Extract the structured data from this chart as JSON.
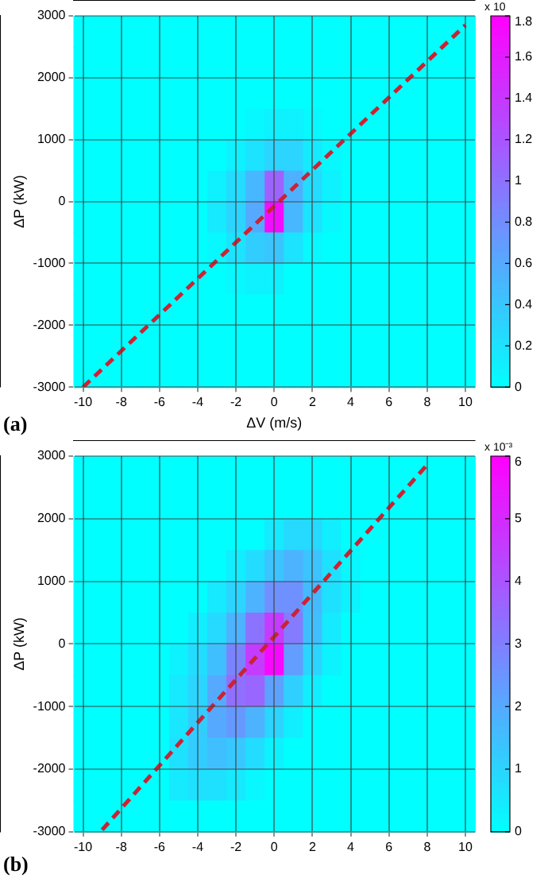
{
  "chart_data": [
    {
      "type": "heatmap",
      "xlabel": "ΔV (m/s)",
      "ylabel": "ΔP (kW)",
      "clabel": "x 10",
      "annotations": [
        "(a)"
      ],
      "grid": true,
      "legend": false,
      "categories": [
        "-10",
        null,
        "-8",
        null,
        "-6",
        null,
        "-4",
        null,
        "-2",
        null,
        "0",
        null,
        "2",
        null,
        "4",
        null,
        "6",
        null,
        "8",
        null,
        "10"
      ],
      "ylim": [
        -3000,
        3000
      ],
      "yticks": [
        -3000,
        -2000,
        -1000,
        0,
        1000,
        2000,
        3000
      ],
      "clim": [
        0,
        1.8
      ],
      "cticks": [
        0,
        0.2,
        0.4,
        0.6,
        0.8,
        1,
        1.2,
        1.4,
        1.6,
        1.8
      ],
      "cells": [
        [
          0,
          0,
          0,
          0,
          0,
          0,
          0,
          0,
          0,
          0,
          0,
          0,
          0,
          0,
          0,
          0,
          0,
          0,
          0,
          0,
          0
        ],
        [
          0,
          0,
          0,
          0,
          0,
          0,
          0,
          0,
          0,
          0,
          0,
          0,
          0,
          0,
          0,
          0,
          0,
          0,
          0,
          0,
          0
        ],
        [
          0,
          0,
          0,
          0,
          0,
          0,
          0,
          0,
          0,
          0,
          0,
          0,
          0,
          0,
          0,
          0,
          0,
          0,
          0,
          0,
          0
        ],
        [
          0,
          0,
          0,
          0,
          0,
          0,
          0,
          0,
          0,
          0.05,
          0.1,
          0.1,
          0.05,
          0,
          0,
          0,
          0,
          0,
          0,
          0,
          0
        ],
        [
          0,
          0,
          0,
          0,
          0,
          0,
          0,
          0,
          0.1,
          0.2,
          0.3,
          0.3,
          0.15,
          0.05,
          0,
          0,
          0,
          0,
          0,
          0,
          0
        ],
        [
          0,
          0,
          0,
          0,
          0,
          0,
          0,
          0.1,
          0.25,
          0.5,
          1.1,
          0.55,
          0.25,
          0.1,
          0,
          0,
          0,
          0,
          0,
          0,
          0
        ],
        [
          0,
          0,
          0,
          0,
          0,
          0,
          0,
          0.15,
          0.3,
          0.6,
          1.7,
          0.5,
          0.2,
          0.05,
          0,
          0,
          0,
          0,
          0,
          0,
          0
        ],
        [
          0,
          0,
          0,
          0,
          0,
          0,
          0,
          0.05,
          0.2,
          0.35,
          0.4,
          0.2,
          0.05,
          0,
          0,
          0,
          0,
          0,
          0,
          0,
          0
        ],
        [
          0,
          0,
          0,
          0,
          0,
          0,
          0,
          0,
          0.05,
          0.1,
          0.1,
          0,
          0,
          0,
          0,
          0,
          0,
          0,
          0,
          0,
          0
        ],
        [
          0,
          0,
          0,
          0,
          0,
          0,
          0,
          0,
          0,
          0,
          0,
          0,
          0,
          0,
          0,
          0,
          0,
          0,
          0,
          0,
          0
        ],
        [
          0,
          0,
          0,
          0,
          0,
          0,
          0,
          0,
          0,
          0,
          0,
          0,
          0,
          0,
          0,
          0,
          0,
          0,
          0,
          0,
          0
        ],
        [
          0,
          0,
          0,
          0,
          0,
          0,
          0,
          0,
          0,
          0,
          0,
          0,
          0,
          0,
          0,
          0,
          0,
          0,
          0,
          0,
          0
        ]
      ],
      "series": [
        {
          "type": "line",
          "values": [
            -3000,
            null,
            null,
            null,
            null,
            null,
            null,
            null,
            null,
            null,
            null,
            null,
            null,
            null,
            null,
            null,
            null,
            null,
            null,
            null,
            2850
          ],
          "color": "#cc2233",
          "line_style": "dashed",
          "marker": "none"
        }
      ]
    },
    {
      "type": "heatmap",
      "ylabel": "ΔP (kW)",
      "clabel": "x 10⁻³",
      "annotations": [
        "(b)"
      ],
      "grid": true,
      "legend": false,
      "categories": [
        "-10",
        null,
        "-8",
        null,
        "-6",
        null,
        "-4",
        null,
        "-2",
        null,
        "0",
        null,
        "2",
        null,
        "4",
        null,
        "6",
        null,
        "8",
        null,
        "10"
      ],
      "ylim": [
        -3000,
        3000
      ],
      "yticks": [
        -3000,
        -2000,
        -1000,
        0,
        1000,
        2000,
        3000
      ],
      "clim": [
        0,
        6
      ],
      "cticks": [
        0,
        1,
        2,
        3,
        4,
        5,
        6
      ],
      "cells": [
        [
          0,
          0,
          0,
          0,
          0,
          0,
          0,
          0,
          0,
          0,
          0,
          0,
          0,
          0,
          0,
          0,
          0,
          0,
          0,
          0,
          0
        ],
        [
          0,
          0,
          0,
          0,
          0,
          0,
          0,
          0,
          0,
          0,
          0,
          0,
          0,
          0,
          0,
          0,
          0,
          0,
          0,
          0,
          0
        ],
        [
          0,
          0,
          0,
          0,
          0,
          0,
          0,
          0,
          0,
          0,
          0.5,
          0.9,
          0.9,
          0.4,
          0,
          0,
          0,
          0,
          0,
          0,
          0
        ],
        [
          0,
          0,
          0,
          0,
          0,
          0,
          0,
          0,
          0.4,
          0.8,
          1.4,
          1.8,
          1.4,
          0.7,
          0.2,
          0,
          0,
          0,
          0,
          0,
          0
        ],
        [
          0,
          0,
          0,
          0,
          0,
          0,
          0,
          0.5,
          1,
          1.8,
          2.6,
          2.6,
          1.6,
          0.7,
          0.3,
          0,
          0,
          0,
          0,
          0,
          0
        ],
        [
          0,
          0,
          0,
          0,
          0,
          0,
          0.4,
          0.9,
          1.8,
          3.3,
          4.6,
          3.1,
          1.5,
          0.5,
          0,
          0,
          0,
          0,
          0,
          0,
          0
        ],
        [
          0,
          0,
          0,
          0,
          0,
          0.3,
          0.8,
          1.5,
          2.9,
          4.6,
          5.8,
          2.3,
          1,
          0.3,
          0,
          0,
          0,
          0,
          0,
          0,
          0
        ],
        [
          0,
          0,
          0,
          0,
          0,
          0.5,
          1,
          2,
          3.4,
          3.6,
          2.2,
          1.1,
          0.4,
          0,
          0,
          0,
          0,
          0,
          0,
          0,
          0
        ],
        [
          0,
          0,
          0,
          0,
          0,
          0.6,
          1.2,
          2,
          2.4,
          1.8,
          1,
          0.4,
          0,
          0,
          0,
          0,
          0,
          0,
          0,
          0,
          0
        ],
        [
          0,
          0,
          0,
          0,
          0,
          0.7,
          1.2,
          1.5,
          1.3,
          0.8,
          0.3,
          0,
          0,
          0,
          0,
          0,
          0,
          0,
          0,
          0,
          0
        ],
        [
          0,
          0,
          0,
          0,
          0,
          0.5,
          0.7,
          0.7,
          0.5,
          0.2,
          0,
          0,
          0,
          0,
          0,
          0,
          0,
          0,
          0,
          0,
          0
        ],
        [
          0,
          0,
          0,
          0,
          0,
          0,
          0,
          0,
          0,
          0,
          0,
          0,
          0,
          0,
          0,
          0,
          0,
          0,
          0,
          0,
          0
        ]
      ],
      "series": [
        {
          "type": "line",
          "values": [
            null,
            -2970,
            null,
            null,
            null,
            null,
            null,
            null,
            null,
            null,
            null,
            null,
            null,
            null,
            null,
            null,
            null,
            null,
            2860,
            null,
            null
          ],
          "color": "#cc2233",
          "line_style": "dashed",
          "marker": "none"
        }
      ]
    }
  ]
}
